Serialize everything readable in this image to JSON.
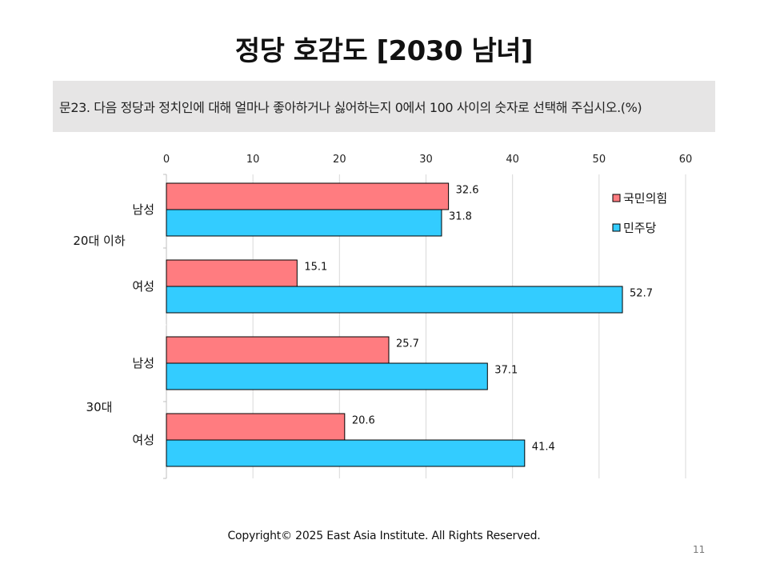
{
  "title": "정당 호감도 [2030 남녀]",
  "question": "문23. 다음 정당과 정치인에 대해 얼마나 좋아하거나 싫어하는지 0에서 100 사이의 숫자로 선택해 주십시오.(%)",
  "footer": {
    "copyright": "Copyright© 2025 East Asia Institute. All Rights Reserved.",
    "page_number": "11"
  },
  "chart_data": {
    "type": "bar",
    "orientation": "horizontal",
    "xlim": [
      0,
      60
    ],
    "x_ticks": [
      0,
      10,
      20,
      30,
      40,
      50,
      60
    ],
    "x_axis_position": "top",
    "grid": true,
    "legend_position": "top-right",
    "groups": [
      {
        "label": "20대 이하",
        "categories": [
          "남성",
          "여성"
        ]
      },
      {
        "label": "30대",
        "categories": [
          "남성",
          "여성"
        ]
      }
    ],
    "categories": [
      "남성",
      "여성",
      "남성",
      "여성"
    ],
    "series": [
      {
        "name": "국민의힘",
        "color": "#ff7c80",
        "values": [
          32.6,
          15.1,
          25.7,
          20.6
        ]
      },
      {
        "name": "민주당",
        "color": "#33ccff",
        "values": [
          31.8,
          52.7,
          37.1,
          41.4
        ]
      }
    ]
  }
}
